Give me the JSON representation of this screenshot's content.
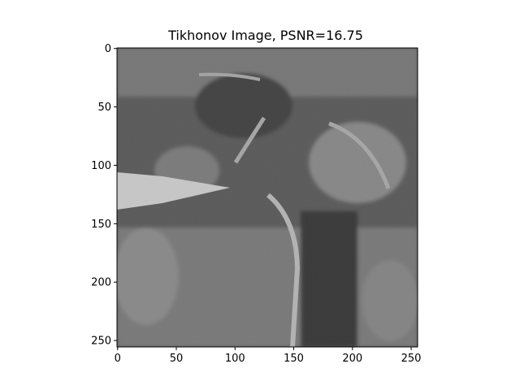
{
  "figure": {
    "title": "Tikhonov Image, PSNR=16.75",
    "image_kind": "noisy grayscale photograph of dense foliage and a tree trunk",
    "image_size": [
      256,
      256
    ],
    "xaxis": {
      "ticks": [
        "0",
        "50",
        "100",
        "150",
        "200",
        "250"
      ],
      "range": [
        0,
        255
      ]
    },
    "yaxis": {
      "ticks": [
        "0",
        "50",
        "100",
        "150",
        "200",
        "250"
      ],
      "range": [
        0,
        255
      ],
      "inverted": true
    },
    "colors": {
      "background": "#ffffff",
      "axes": "#000000",
      "image_mid_gray": "#707070"
    }
  }
}
